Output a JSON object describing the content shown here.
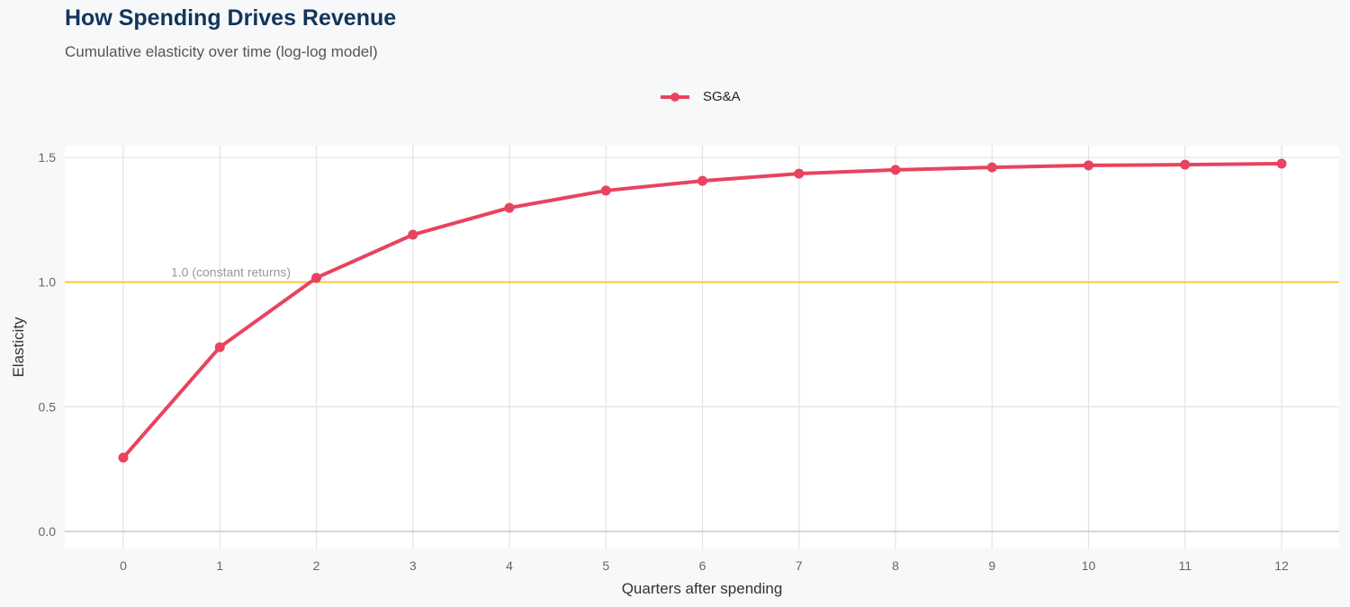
{
  "chart_data": {
    "type": "line",
    "title": "How Spending Drives Revenue",
    "subtitle": "Cumulative elasticity over time (log-log model)",
    "xlabel": "Quarters after spending",
    "ylabel": "Elasticity",
    "x": [
      0,
      1,
      2,
      3,
      4,
      5,
      6,
      7,
      8,
      9,
      10,
      11,
      12
    ],
    "xticks": [
      "0",
      "1",
      "2",
      "3",
      "4",
      "5",
      "6",
      "7",
      "8",
      "9",
      "10",
      "11",
      "12"
    ],
    "yticks": [
      "0.0",
      "0.5",
      "1.0",
      "1.5"
    ],
    "ylim": [
      -0.07,
      1.55
    ],
    "xlim": [
      -0.6,
      12.6
    ],
    "grid": true,
    "legend_position": "top",
    "series": [
      {
        "name": "SG&A",
        "color": "#e8435f",
        "values": [
          0.296,
          0.739,
          1.017,
          1.19,
          1.298,
          1.367,
          1.406,
          1.435,
          1.45,
          1.46,
          1.468,
          1.471,
          1.475
        ]
      }
    ],
    "reference_line": {
      "y": 1.0,
      "label": "1.0 (constant returns)",
      "color": "#f7c948"
    }
  }
}
